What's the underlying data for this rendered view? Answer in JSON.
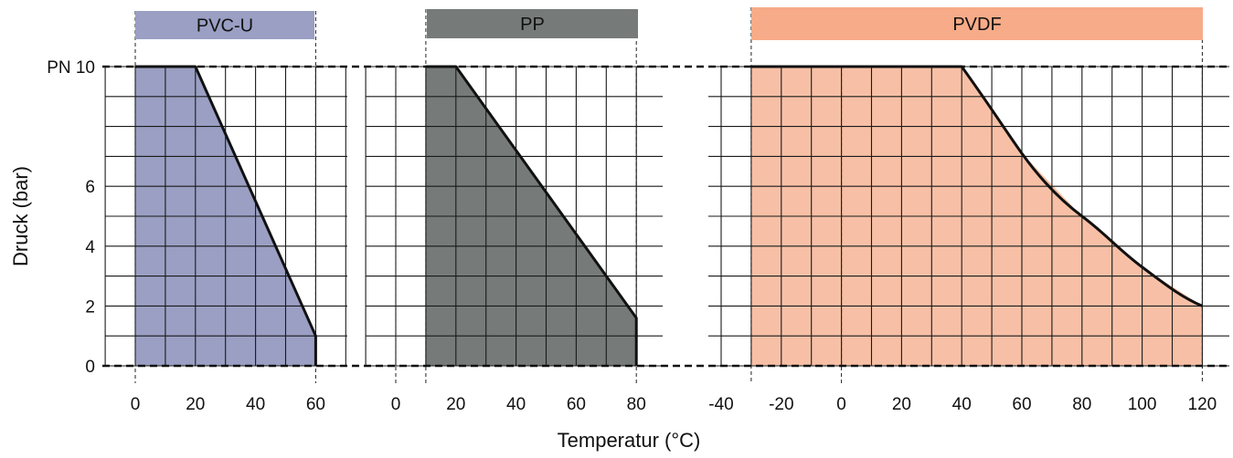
{
  "chart_data": {
    "type": "area",
    "xlabel": "Temperatur (°C)",
    "ylabel": "Druck (bar)",
    "ylim": [
      0,
      10
    ],
    "y_ticks": [
      "0",
      "2",
      "4",
      "6",
      "PN 10"
    ],
    "grid": true,
    "panels": [
      {
        "name": "PVC-U",
        "color": "#9a9fc3",
        "header_color": "#9a9fc3",
        "x_ticks": [
          "0",
          "20",
          "40",
          "60"
        ],
        "x": [
          0,
          20,
          60,
          60
        ],
        "y": [
          10,
          10,
          1,
          0
        ]
      },
      {
        "name": "PP",
        "color": "#767b7a",
        "header_color": "#767b7a",
        "x_ticks": [
          "0",
          "20",
          "40",
          "60",
          "80"
        ],
        "x": [
          10,
          20,
          80,
          80
        ],
        "y": [
          10,
          10,
          1.6,
          0
        ]
      },
      {
        "name": "PVDF",
        "color": "#f7c0a6",
        "header_color": "#f7ab88",
        "x_ticks": [
          "-40",
          "-20",
          "0",
          "20",
          "40",
          "60",
          "80",
          "100",
          "120"
        ],
        "x": [
          -30,
          40,
          60,
          80,
          100,
          120
        ],
        "y": [
          10,
          10,
          7.1,
          5,
          3.3,
          2
        ]
      }
    ]
  }
}
